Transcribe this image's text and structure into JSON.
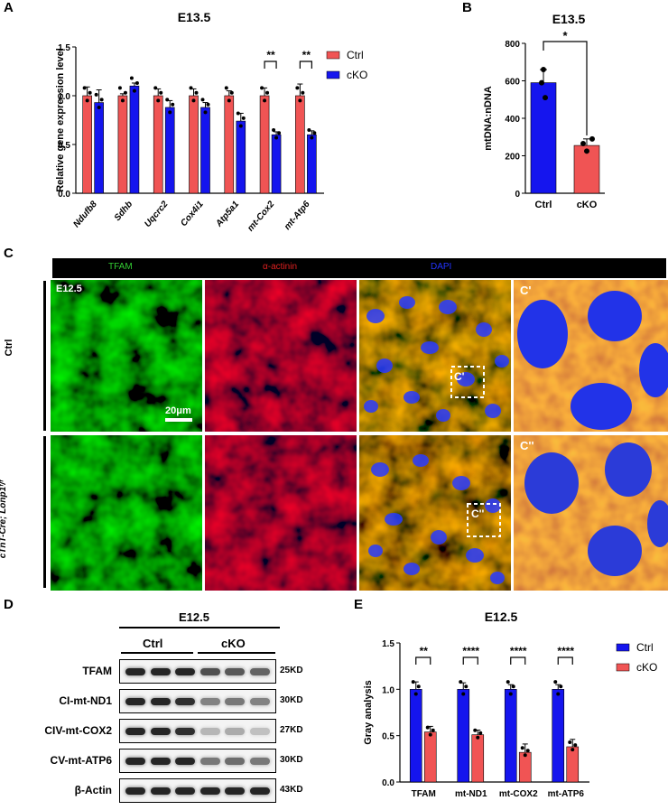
{
  "panels": {
    "A": "A",
    "B": "B",
    "C": "C",
    "D": "D",
    "E": "E"
  },
  "colors": {
    "ctrl_red": "#F05454",
    "cko_blue": "#1515EE",
    "tfam_green": "#33cc33",
    "actinin_red": "#e02020",
    "dapi_blue": "#2233ff"
  },
  "chart_data": [
    {
      "panel": "A",
      "type": "bar",
      "title": "E13.5",
      "ylabel": "Relative gene expression level",
      "ylim": [
        0,
        1.5
      ],
      "yticks": [
        "0.0",
        "0.5",
        "1.0",
        "1.5"
      ],
      "categories": [
        "Ndufb8",
        "Sdhb",
        "Uqcrc2",
        "Cox4i1",
        "Atp5a1",
        "mt-Cox2",
        "mt-Atp6"
      ],
      "series": [
        {
          "name": "Ctrl",
          "color": "#F05454",
          "values": [
            1.0,
            1.0,
            1.0,
            1.0,
            1.0,
            1.0,
            1.0
          ],
          "errors": [
            0.09,
            0.02,
            0.07,
            0.07,
            0.05,
            0.08,
            0.12
          ]
        },
        {
          "name": "cKO",
          "color": "#1515EE",
          "values": [
            0.93,
            1.1,
            0.88,
            0.88,
            0.74,
            0.6,
            0.6
          ],
          "errors": [
            0.13,
            0.03,
            0.07,
            0.05,
            0.08,
            0.03,
            0.04
          ]
        }
      ],
      "significance": [
        {
          "category": "mt-Cox2",
          "label": "**"
        },
        {
          "category": "mt-Atp6",
          "label": "**"
        }
      ],
      "legend": "top-right"
    },
    {
      "panel": "B",
      "type": "bar",
      "title": "E13.5",
      "ylabel": "mtDNA:nDNA",
      "ylim": [
        0,
        800
      ],
      "yticks": [
        "0",
        "200",
        "400",
        "600",
        "800"
      ],
      "categories": [
        "Ctrl",
        "cKO"
      ],
      "values": [
        590,
        255
      ],
      "errors": [
        70,
        35
      ],
      "colors": [
        "#1515EE",
        "#F05454"
      ],
      "significance": [
        {
          "label": "*"
        }
      ]
    },
    {
      "panel": "E",
      "type": "bar",
      "title": "E12.5",
      "ylabel": "Gray analysis",
      "ylim": [
        0,
        1.5
      ],
      "yticks": [
        "0.0",
        "0.5",
        "1.0",
        "1.5"
      ],
      "categories": [
        "TFAM",
        "mt-ND1",
        "mt-COX2",
        "mt-ATP6"
      ],
      "series": [
        {
          "name": "Ctrl",
          "color": "#1515EE",
          "values": [
            1.0,
            1.0,
            1.0,
            1.0
          ],
          "errors": [
            0.08,
            0.07,
            0.05,
            0.05
          ]
        },
        {
          "name": "cKO",
          "color": "#F05454",
          "values": [
            0.54,
            0.51,
            0.32,
            0.38
          ],
          "errors": [
            0.06,
            0.05,
            0.09,
            0.08
          ]
        }
      ],
      "significance": [
        {
          "category": "TFAM",
          "label": "**"
        },
        {
          "category": "mt-ND1",
          "label": "****"
        },
        {
          "category": "mt-COX2",
          "label": "****"
        },
        {
          "category": "mt-ATP6",
          "label": "****"
        }
      ],
      "legend": "top-right"
    }
  ],
  "microscopy": {
    "channels": [
      "TFAM",
      "α-actinin",
      "DAPI"
    ],
    "stage": "E12.5",
    "rows": [
      "Ctrl",
      "cTnT-Cre; Lonp1ᶠ/ᶠ"
    ],
    "scale_bar": "20μm",
    "zoom_labels": [
      "C'",
      "C''"
    ]
  },
  "western": {
    "stage": "E12.5",
    "groups": [
      "Ctrl",
      "cKO"
    ],
    "rows": [
      {
        "label": "TFAM",
        "kd": "25KD"
      },
      {
        "label": "CI-mt-ND1",
        "kd": "30KD"
      },
      {
        "label": "CIV-mt-COX2",
        "kd": "27KD"
      },
      {
        "label": "CV-mt-ATP6",
        "kd": "30KD"
      },
      {
        "label": "β-Actin",
        "kd": "43KD"
      }
    ]
  }
}
